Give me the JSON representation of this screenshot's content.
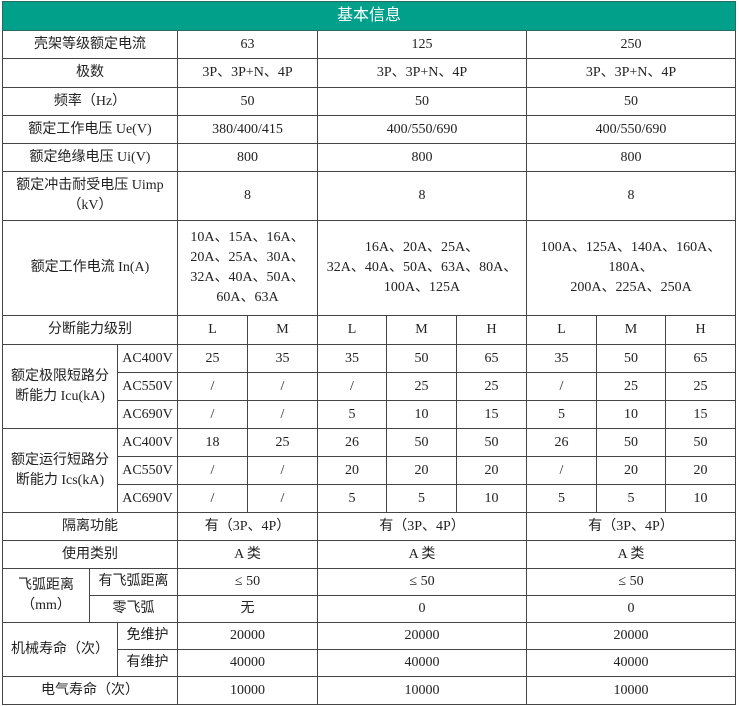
{
  "title": "基本信息",
  "frame_current": {
    "label": "壳架等级额定电流",
    "values": [
      "63",
      "125",
      "250"
    ]
  },
  "poles": {
    "label": "极数",
    "values": [
      "3P、3P+N、4P",
      "3P、3P+N、4P",
      "3P、3P+N、4P"
    ]
  },
  "frequency": {
    "label": "频率（Hz）",
    "values": [
      "50",
      "50",
      "50"
    ]
  },
  "rated_voltage": {
    "label": "额定工作电压 Ue(V)",
    "values": [
      "380/400/415",
      "400/550/690",
      "400/550/690"
    ]
  },
  "insulation_voltage": {
    "label": "额定绝缘电压 Ui(V)",
    "values": [
      "800",
      "800",
      "800"
    ]
  },
  "impulse_voltage": {
    "label_lines": [
      "额定冲击耐受电压 Uimp",
      "（kV）"
    ],
    "values": [
      "8",
      "8",
      "8"
    ]
  },
  "rated_current": {
    "label": "额定工作电流 In(A)",
    "values": [
      [
        "10A、15A、16A、",
        "20A、25A、30A、",
        "32A、40A、50A、",
        "60A、63A"
      ],
      [
        "16A、20A、25A、",
        "32A、40A、50A、63A、80A、",
        "100A、125A"
      ],
      [
        "100A、125A、140A、160A、180A、",
        "200A、225A、250A"
      ]
    ]
  },
  "breaking_class": {
    "label": "分断能力级别",
    "levels": [
      "L",
      "M",
      "L",
      "M",
      "H",
      "L",
      "M",
      "H"
    ]
  },
  "icu": {
    "label_lines": [
      "额定极限短路分",
      "断能力 Icu(kA)"
    ],
    "rows": [
      {
        "voltage": "AC400V",
        "values": [
          "25",
          "35",
          "35",
          "50",
          "65",
          "35",
          "50",
          "65"
        ]
      },
      {
        "voltage": "AC550V",
        "values": [
          "/",
          "/",
          "/",
          "25",
          "25",
          "/",
          "25",
          "25"
        ]
      },
      {
        "voltage": "AC690V",
        "values": [
          "/",
          "/",
          "5",
          "10",
          "15",
          "5",
          "10",
          "15"
        ]
      }
    ]
  },
  "ics": {
    "label_lines": [
      "额定运行短路分",
      "断能力 Ics(kA)"
    ],
    "rows": [
      {
        "voltage": "AC400V",
        "values": [
          "18",
          "25",
          "26",
          "50",
          "50",
          "26",
          "50",
          "50"
        ]
      },
      {
        "voltage": "AC550V",
        "values": [
          "/",
          "/",
          "20",
          "20",
          "20",
          "/",
          "20",
          "20"
        ]
      },
      {
        "voltage": "AC690V",
        "values": [
          "/",
          "/",
          "5",
          "5",
          "10",
          "5",
          "5",
          "10"
        ]
      }
    ]
  },
  "isolation": {
    "label": "隔离功能",
    "values": [
      "有（3P、4P）",
      "有（3P、4P）",
      "有（3P、4P）"
    ]
  },
  "utilization": {
    "label": "使用类别",
    "values": [
      "A 类",
      "A 类",
      "A 类"
    ]
  },
  "arc_distance": {
    "label_lines": [
      "飞弧距离",
      "（mm）"
    ],
    "rows": [
      {
        "label": "有飞弧距离",
        "values": [
          "≤ 50",
          "≤ 50",
          "≤ 50"
        ]
      },
      {
        "label": "零飞弧",
        "values": [
          "无",
          "0",
          "0"
        ]
      }
    ]
  },
  "mechanical_life": {
    "label": "机械寿命（次）",
    "rows": [
      {
        "label": "免维护",
        "values": [
          "20000",
          "20000",
          "20000"
        ]
      },
      {
        "label": "有维护",
        "values": [
          "40000",
          "40000",
          "40000"
        ]
      }
    ]
  },
  "electrical_life": {
    "label": "电气寿命（次）",
    "values": [
      "10000",
      "10000",
      "10000"
    ]
  },
  "colors": {
    "header_bg": "#00a08a",
    "header_text": "#ffffff",
    "border": "#444444"
  }
}
